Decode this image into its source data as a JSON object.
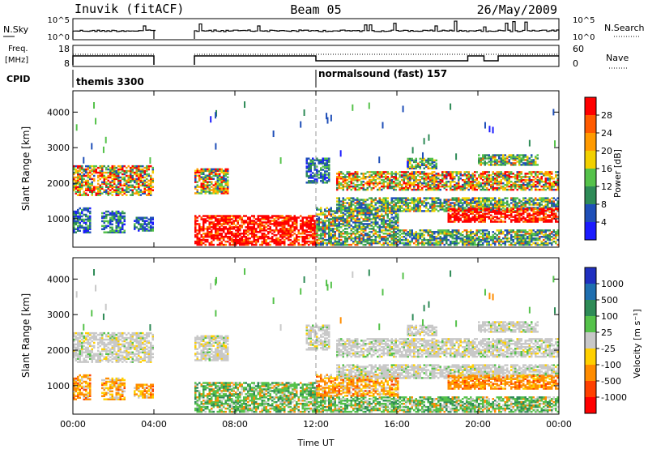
{
  "header": {
    "station": "Inuvik (fitACF)",
    "beam": "Beam 05",
    "date": "26/May/2009"
  },
  "params": {
    "nsky_label": "N.Sky",
    "nsky_ticks": [
      "10^5",
      "10^0"
    ],
    "nsearch_label": "N.Search",
    "nsearch_ticks": [
      "10^5",
      "10^0"
    ],
    "freq_label": "Freq.",
    "freq_unit": "[MHz]",
    "freq_ticks": [
      "18",
      "8"
    ],
    "nave_label": "Nave",
    "nave_ticks": [
      "60",
      "0"
    ],
    "cpid_label": "CPID",
    "cpid_entries": [
      {
        "label": "themis 3300",
        "start_hour": 0
      },
      {
        "label": "normalsound (fast) 157",
        "start_hour": 12
      }
    ]
  },
  "chart_data": [
    {
      "type": "heatmap",
      "name": "power",
      "xlabel": "",
      "ylabel": "Slant Range [km]",
      "xlim": [
        0,
        24
      ],
      "ylim": [
        200,
        4600
      ],
      "yticks": [
        "1000",
        "2000",
        "3000",
        "4000"
      ],
      "yticks_values": [
        1000,
        2000,
        3000,
        4000
      ],
      "colorbar": {
        "label": "Power [dB]",
        "ticks": [
          "4",
          "8",
          "12",
          "16",
          "20",
          "24",
          "28"
        ],
        "colors": [
          "#1b1bff",
          "#1f4fb8",
          "#2e8b57",
          "#55c24a",
          "#f2d000",
          "#ff9a00",
          "#ff5a00",
          "#ff0000"
        ]
      },
      "data_gaps_hours": [
        [
          4,
          6
        ]
      ]
    },
    {
      "type": "heatmap",
      "name": "velocity",
      "xlabel": "Time UT",
      "ylabel": "Slant Range [km]",
      "xlim": [
        0,
        24
      ],
      "ylim": [
        200,
        4600
      ],
      "xticks": [
        "00:00",
        "04:00",
        "08:00",
        "12:00",
        "16:00",
        "20:00",
        "00:00"
      ],
      "yticks": [
        "1000",
        "2000",
        "3000",
        "4000"
      ],
      "yticks_values": [
        1000,
        2000,
        3000,
        4000
      ],
      "colorbar": {
        "label": "Velocity [m s⁻¹]",
        "ticks": [
          "1000",
          "500",
          "100",
          "25",
          "-25",
          "-100",
          "-500",
          "-1000"
        ],
        "colors": [
          "#2030c0",
          "#1f6fb0",
          "#2e8b57",
          "#55c24a",
          "#c8c8c8",
          "#ffd000",
          "#ff8c00",
          "#ff4000",
          "#ff0000"
        ]
      },
      "data_gaps_hours": [
        [
          4,
          6
        ]
      ]
    }
  ]
}
